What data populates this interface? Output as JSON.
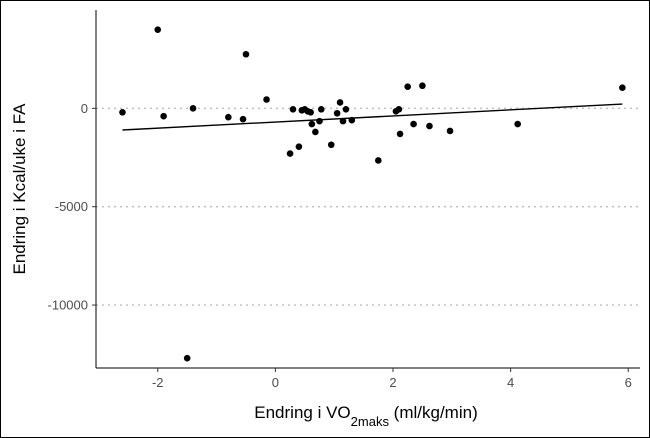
{
  "chart_data": {
    "type": "scatter",
    "xlabel": {
      "main": "Endring  i VO",
      "subscript": "2maks",
      "suffix": " (ml/kg/min)"
    },
    "ylabel": "Endring i Kcal/uke i FA",
    "xlim": [
      -3.05,
      6.2
    ],
    "ylim": [
      -13200,
      5000
    ],
    "x_ticks": [
      -2,
      0,
      2,
      4,
      6
    ],
    "y_ticks": [
      -10000,
      -5000,
      0
    ],
    "y_tick_labels": [
      "-10000",
      "-5000",
      "0"
    ],
    "x_tick_labels": [
      "-2",
      "0",
      "2",
      "4",
      "6"
    ],
    "grid": "dotted horizontal lines at y ticks",
    "point_color": "#000000",
    "line_color": "#000000",
    "points": [
      {
        "x": -2.6,
        "y": -200
      },
      {
        "x": -2.0,
        "y": 4000
      },
      {
        "x": -1.9,
        "y": -400
      },
      {
        "x": -1.5,
        "y": -12700
      },
      {
        "x": -1.4,
        "y": 0
      },
      {
        "x": -0.8,
        "y": -450
      },
      {
        "x": -0.55,
        "y": -550
      },
      {
        "x": -0.5,
        "y": 2750
      },
      {
        "x": -0.15,
        "y": 450
      },
      {
        "x": 0.25,
        "y": -2300
      },
      {
        "x": 0.3,
        "y": -50
      },
      {
        "x": 0.4,
        "y": -1950
      },
      {
        "x": 0.45,
        "y": -100
      },
      {
        "x": 0.5,
        "y": -50
      },
      {
        "x": 0.55,
        "y": -150
      },
      {
        "x": 0.6,
        "y": -200
      },
      {
        "x": 0.62,
        "y": -800
      },
      {
        "x": 0.68,
        "y": -1200
      },
      {
        "x": 0.75,
        "y": -650
      },
      {
        "x": 0.78,
        "y": -50
      },
      {
        "x": 0.95,
        "y": -1850
      },
      {
        "x": 1.05,
        "y": -250
      },
      {
        "x": 1.1,
        "y": 300
      },
      {
        "x": 1.15,
        "y": -650
      },
      {
        "x": 1.2,
        "y": -50
      },
      {
        "x": 1.3,
        "y": -600
      },
      {
        "x": 1.75,
        "y": -2650
      },
      {
        "x": 2.05,
        "y": -150
      },
      {
        "x": 2.1,
        "y": -50
      },
      {
        "x": 2.12,
        "y": -1300
      },
      {
        "x": 2.25,
        "y": 1100
      },
      {
        "x": 2.35,
        "y": -800
      },
      {
        "x": 2.5,
        "y": 1150
      },
      {
        "x": 2.62,
        "y": -900
      },
      {
        "x": 2.97,
        "y": -1150
      },
      {
        "x": 4.12,
        "y": -800
      },
      {
        "x": 5.9,
        "y": 1050
      }
    ],
    "trend_line": {
      "x": [
        -2.6,
        5.9
      ],
      "y": [
        -1100,
        220
      ]
    }
  }
}
